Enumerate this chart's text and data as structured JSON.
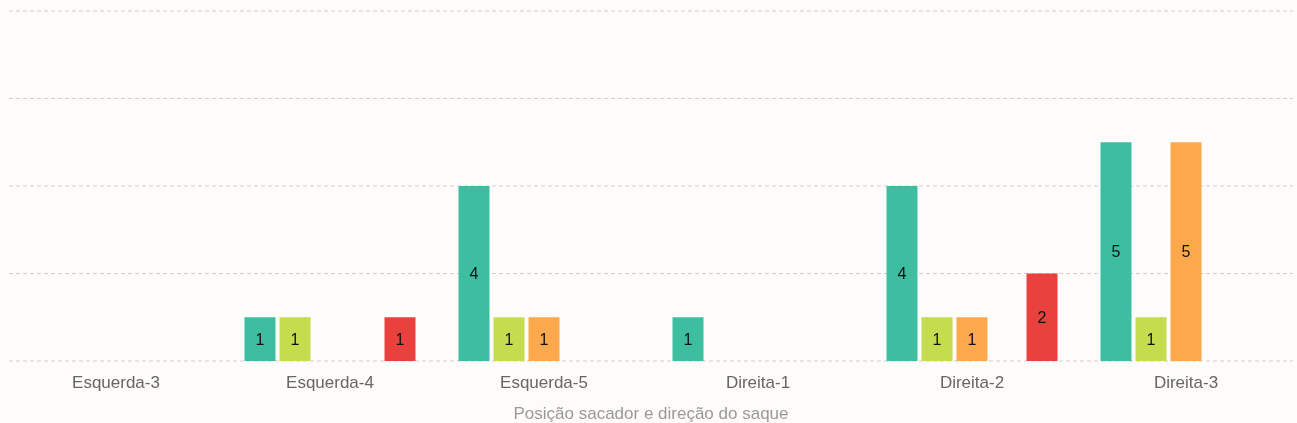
{
  "chart_data": {
    "type": "bar",
    "xlabel": "Posição sacador e direção do saque",
    "categories": [
      "Esquerda-3",
      "Esquerda-4",
      "Esquerda-5",
      "Direita-1",
      "Direita-2",
      "Direita-3"
    ],
    "series": [
      {
        "color": "#3dbea0",
        "values": [
          null,
          1,
          4,
          1,
          4,
          5
        ]
      },
      {
        "color": "#c5dc4e",
        "values": [
          null,
          1,
          1,
          null,
          1,
          1
        ]
      },
      {
        "color": "#fba94c",
        "values": [
          null,
          null,
          1,
          null,
          1,
          5
        ]
      },
      {
        "values": [
          null,
          null,
          null,
          null,
          null,
          null
        ]
      },
      {
        "color": "#e9413d",
        "values": [
          null,
          1,
          null,
          null,
          2,
          null
        ]
      }
    ],
    "ylim": [
      0,
      8
    ],
    "yticks": [
      {
        "value": 0,
        "label": null
      },
      {
        "value": 2,
        "label": null
      },
      {
        "value": 4,
        "label": null
      },
      {
        "value": 6,
        "label": null
      },
      {
        "value": 8,
        "label": null
      }
    ],
    "tick_labels": "x",
    "grid": "y",
    "data_labels": true
  }
}
